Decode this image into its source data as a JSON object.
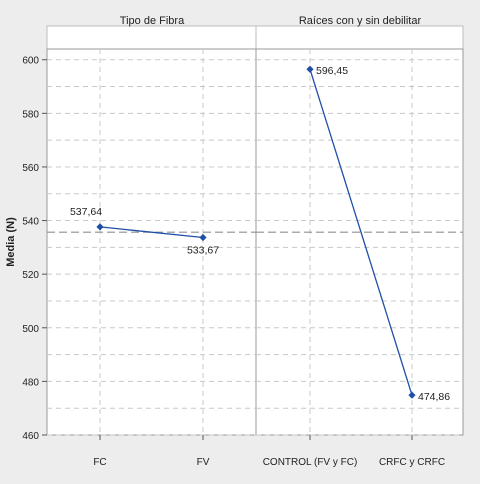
{
  "chart_data": {
    "type": "line",
    "ylabel": "Media (N)",
    "ylim": [
      460,
      604
    ],
    "yticks": [
      460,
      480,
      500,
      520,
      540,
      560,
      580,
      600
    ],
    "y_tick_labels": [
      "460",
      "480",
      "500",
      "520",
      "540",
      "560",
      "580",
      "600"
    ],
    "reference_line": 535.66,
    "grid": true,
    "colors": {
      "line": "#1f4fa8",
      "marker": "#1f4fa8",
      "grid": "#c8c8c8",
      "reference": "#909090"
    },
    "panels": [
      {
        "title": "Tipo de Fibra",
        "categories": [
          "FC",
          "FV"
        ],
        "values": [
          537.64,
          533.67
        ],
        "labels": [
          "537,64",
          "533,67"
        ]
      },
      {
        "title": "Raíces con y sin debilitar",
        "categories": [
          "CONTROL (FV y FC)",
          "CRFC y CRFC"
        ],
        "values": [
          596.45,
          474.86
        ],
        "labels": [
          "596,45",
          "474,86"
        ]
      }
    ]
  }
}
